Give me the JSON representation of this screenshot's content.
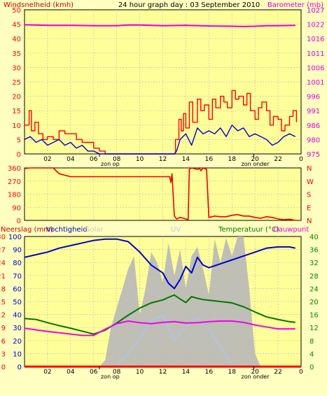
{
  "colors": {
    "background": "#ffffc0",
    "plot_area": "#ffff99",
    "wind": "#cc0000",
    "baro": "#e000e0",
    "gust": "#ff0000",
    "avg_wind": "#0000cc",
    "direction": "#ee0000",
    "humidity": "#0000cc",
    "temperature": "#007700",
    "dewpoint": "#ee00ee",
    "solar": "#b8b8b8",
    "uv": "#a8c8ff",
    "rain": "#ff0000",
    "left_axis_red": "#ff0000",
    "right_axis_green": "#008800"
  },
  "chart_data": [
    {
      "type": "line",
      "title": "24 hour graph day : 03 September 2010",
      "left_label": "Windsnelheid (kmh)",
      "right_label": "Barometer (mb)",
      "x_ticks": [
        "02",
        "04",
        "06",
        "08",
        "10",
        "12",
        "14",
        "16",
        "18",
        "20",
        "22",
        "0"
      ],
      "x_annotations": [
        "zon op",
        "zon onder"
      ],
      "sunrise_hour": 6.5,
      "sunset_hour": 19.9,
      "xlim": [
        0,
        24
      ],
      "ylim_left": [
        0,
        50
      ],
      "ylim_right": [
        975,
        1027
      ],
      "left_ticks": [
        "50",
        "45",
        "40",
        "35",
        "30",
        "25",
        "20",
        "15",
        "10",
        "5",
        "0"
      ],
      "right_ticks": [
        "1027",
        "1022",
        "1016",
        "1011",
        "1006",
        "1001",
        "996",
        "991",
        "986",
        "980",
        "975"
      ],
      "series": [
        {
          "key": "baro",
          "axis": "left",
          "x": [
            0,
            2,
            4,
            6,
            8,
            9,
            10,
            12,
            14,
            16,
            18,
            19,
            20,
            21,
            22,
            23.5
          ],
          "y": [
            44.8,
            44.6,
            44.6,
            44.5,
            44.5,
            44.7,
            44.7,
            44.5,
            44.6,
            44.4,
            44.3,
            44.2,
            44.3,
            44.5,
            44.5,
            44.6
          ]
        },
        {
          "key": "gust",
          "axis": "left",
          "step": true,
          "x": [
            0,
            0.4,
            0.6,
            0.9,
            1.2,
            1.6,
            2,
            2.5,
            3,
            3.5,
            4.2,
            4.5,
            5,
            5.5,
            6,
            6.5,
            7,
            13,
            13.1,
            13.4,
            13.6,
            13.8,
            14,
            14.3,
            14.6,
            15,
            15.3,
            15.6,
            16,
            16.3,
            16.6,
            17,
            17.3,
            17.6,
            18,
            18.3,
            18.6,
            19,
            19.3,
            19.6,
            20,
            20.3,
            20.6,
            21,
            21.3,
            21.6,
            22,
            22.3,
            22.6,
            23,
            23.3,
            23.6
          ],
          "y": [
            10,
            15,
            8,
            11,
            7,
            5,
            6,
            5,
            8,
            7,
            7,
            5,
            4,
            4,
            2,
            1,
            0,
            0,
            5,
            12,
            8,
            14,
            9,
            18,
            11,
            19,
            15,
            17,
            12,
            19,
            16,
            20,
            18,
            16,
            22,
            19,
            20,
            17,
            21,
            15,
            12,
            16,
            18,
            15,
            10,
            13,
            12,
            8,
            10,
            13,
            15,
            11
          ]
        },
        {
          "key": "avg_wind",
          "axis": "left",
          "x": [
            0,
            0.5,
            1,
            1.5,
            2,
            2.5,
            3,
            3.5,
            4,
            4.5,
            5,
            5.5,
            6,
            6.5,
            7,
            8,
            10,
            12,
            13,
            13.2,
            13.5,
            14,
            14.5,
            15,
            15.5,
            16,
            16.5,
            17,
            17.5,
            18,
            18.5,
            19,
            19.5,
            20,
            20.5,
            21,
            21.5,
            22,
            22.5,
            23,
            23.5
          ],
          "y": [
            5,
            6,
            4,
            5,
            3,
            4,
            5,
            3,
            4,
            2,
            3,
            1,
            1,
            0,
            0,
            0,
            0,
            0,
            0,
            1,
            5,
            7,
            3,
            9,
            7,
            8,
            7,
            9,
            6,
            10,
            8,
            9,
            6,
            7,
            6,
            5,
            3,
            4,
            6,
            7,
            6
          ]
        }
      ]
    },
    {
      "type": "line",
      "right_label": "N W S E N",
      "left_ticks": [
        "360",
        "270",
        "180",
        "90",
        "0"
      ],
      "right_letters": [
        "N",
        "W",
        "S",
        "E",
        "N"
      ],
      "xlim": [
        0,
        24
      ],
      "ylim": [
        0,
        360
      ],
      "series": [
        {
          "key": "direction",
          "x": [
            0,
            0.5,
            1,
            2.5,
            3,
            4,
            6,
            8,
            10,
            12.6,
            12.7,
            12.8,
            13,
            13.2,
            13.5,
            14,
            14.2,
            14.3,
            14.5,
            15,
            15.2,
            15.3,
            15.5,
            15.8,
            16,
            16.5,
            17,
            17.5,
            18,
            18.5,
            19,
            19.5,
            20,
            20.5,
            21,
            21.5,
            22,
            22.5,
            23,
            23.5
          ],
          "y": [
            355,
            360,
            360,
            360,
            320,
            300,
            300,
            300,
            300,
            300,
            260,
            320,
            30,
            10,
            20,
            10,
            5,
            350,
            360,
            350,
            355,
            340,
            360,
            350,
            20,
            30,
            25,
            25,
            35,
            40,
            30,
            30,
            20,
            15,
            25,
            20,
            10,
            5,
            8,
            0
          ]
        }
      ]
    },
    {
      "type": "line",
      "left_label": "Neerslag (mm)",
      "labels": [
        "Vochtigheid",
        "Solar",
        "UV",
        "Temperatuur (°C)",
        "Dauwpunt"
      ],
      "xlim": [
        0,
        24
      ],
      "ylim_left": [
        0,
        100
      ],
      "ylim_right": [
        0,
        40
      ],
      "left_ticks": [
        "100",
        "90",
        "80",
        "70",
        "60",
        "50",
        "40",
        "30",
        "20",
        "10",
        "0"
      ],
      "left_sub_ticks": [
        "30",
        "27",
        "24",
        "21",
        "18",
        "15",
        "12",
        "9",
        "6",
        "3",
        "0"
      ],
      "right_ticks": [
        "40",
        "36",
        "32",
        "28",
        "24",
        "20",
        "16",
        "12",
        "8",
        "4",
        "0"
      ],
      "series": [
        {
          "key": "solar",
          "axis": "left",
          "area": true,
          "x": [
            0,
            6.5,
            7,
            7.5,
            8,
            8.5,
            9,
            9.5,
            10,
            10.5,
            11,
            11.5,
            12,
            12.5,
            13,
            13.5,
            14,
            14.5,
            15,
            15.5,
            16,
            16.5,
            17,
            17.5,
            18,
            18.5,
            19,
            19.5,
            20,
            20.5,
            24
          ],
          "y": [
            0,
            0,
            5,
            30,
            45,
            60,
            75,
            85,
            40,
            60,
            88,
            80,
            65,
            95,
            70,
            90,
            60,
            85,
            92,
            75,
            55,
            98,
            80,
            99,
            85,
            100,
            100,
            60,
            10,
            0,
            0
          ]
        },
        {
          "key": "uv",
          "axis": "left",
          "x": [
            8,
            9,
            10,
            11,
            12,
            12.5,
            13,
            13.5,
            14,
            15,
            16,
            17,
            18
          ],
          "y": [
            1,
            10,
            22,
            35,
            40,
            30,
            20,
            26,
            30,
            38,
            28,
            15,
            2
          ]
        },
        {
          "key": "humidity",
          "axis": "left",
          "x": [
            0,
            1,
            2,
            3,
            4,
            5,
            6,
            7,
            8,
            9,
            10,
            11,
            12,
            12.5,
            13,
            13.5,
            14,
            14.5,
            15,
            15.5,
            16,
            17,
            18,
            19,
            20,
            21,
            22,
            23,
            23.5
          ],
          "y": [
            84,
            86,
            88,
            91,
            93,
            95,
            97,
            98,
            98,
            96,
            88,
            78,
            72,
            64,
            60,
            67,
            77,
            72,
            84,
            78,
            76,
            79,
            82,
            85,
            88,
            91,
            92,
            92,
            91
          ]
        },
        {
          "key": "temperature",
          "axis": "right",
          "x": [
            0,
            1,
            2,
            3,
            4,
            5,
            6,
            7,
            8,
            9,
            10,
            11,
            12,
            12.5,
            13,
            13.5,
            14,
            14.5,
            15,
            15.5,
            16,
            17,
            18,
            19,
            20,
            21,
            22,
            23,
            23.5
          ],
          "y": [
            14.8,
            14.5,
            13.5,
            12.6,
            11.8,
            10.9,
            10,
            11.2,
            13.4,
            15.8,
            18,
            19.6,
            20.5,
            21.3,
            22,
            20.8,
            19.7,
            21.5,
            21,
            20.6,
            20.4,
            20,
            19.6,
            18.4,
            16.8,
            15.3,
            14.5,
            13.8,
            13.6
          ]
        },
        {
          "key": "dewpoint",
          "axis": "right",
          "x": [
            0,
            1,
            2,
            3,
            4,
            5,
            6,
            7,
            8,
            9,
            10,
            11,
            12,
            13,
            14,
            15,
            16,
            17,
            18,
            19,
            20,
            21,
            22,
            23,
            23.5
          ],
          "y": [
            11.8,
            11.3,
            10.8,
            10.4,
            10,
            9.6,
            9.6,
            11.5,
            13.2,
            14,
            13.5,
            13.2,
            13.6,
            13.8,
            13.4,
            13.5,
            13.8,
            14,
            14,
            13.6,
            12.8,
            12.2,
            11.6,
            11.6,
            11.6
          ]
        },
        {
          "key": "rain",
          "axis": "left",
          "x": [
            0,
            24
          ],
          "y": [
            0,
            0
          ]
        }
      ]
    }
  ]
}
